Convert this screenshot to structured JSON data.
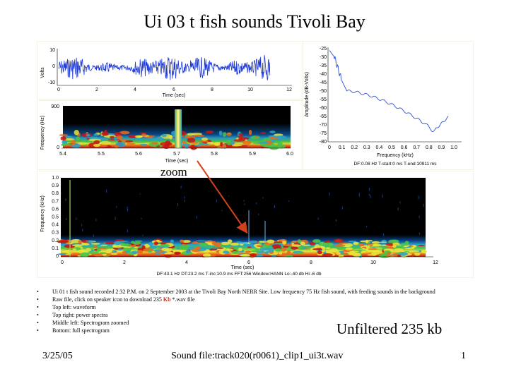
{
  "slide": {
    "title": "Ui 03 t fish sounds Tivoli Bay",
    "zoom_label": "zoom",
    "unfiltered": "Unfiltered 235 kb",
    "date": "3/25/05",
    "footer": "Sound file:track020(r0061)_clip1_ui3t.wav",
    "page_number": "1"
  },
  "notes": [
    {
      "bullet": "•",
      "text": "Ui 01 t fish sound recorded  2:32 P.M. on 2 September 2003 at the Tivoli Bay North NERR Site. Low frequency 75 Hz fish sound, with feeding sounds in the background"
    },
    {
      "bullet": "•",
      "text_pre": "Raw file, click on speaker icon to download 235 ",
      "text_kb": "Kb",
      "text_post": " *.wav file"
    },
    {
      "bullet": "•",
      "text": "Top left: waveform"
    },
    {
      "bullet": "•",
      "text": "Top right: power spectra"
    },
    {
      "bullet": "•",
      "text": "Middle left: Spectrogram zoomed"
    },
    {
      "bullet": "•",
      "text": "Bottom: full spectrogram"
    }
  ],
  "waveform": {
    "ylabel": "Volts",
    "xlabel": "Time (sec)",
    "y_ticks": [
      "10",
      "0",
      "-10"
    ],
    "x_ticks": [
      "0",
      "2",
      "4",
      "6",
      "8",
      "10",
      "12"
    ],
    "color": "#1f3bd6"
  },
  "zoom_spec": {
    "ylabel": "Frequency (Hz)",
    "xlabel": "Time (sec)",
    "y_ticks": [
      "900",
      "0"
    ],
    "x_ticks": [
      "5.4",
      "5.5",
      "5.6",
      "5.7",
      "5.8",
      "5.9",
      "6.0"
    ]
  },
  "power": {
    "ylabel": "Amplitude (dB-Volts)",
    "xlabel": "Frequency (kHz)",
    "y_ticks": [
      "-25",
      "-30",
      "-35",
      "-40",
      "-45",
      "-50",
      "-55",
      "-60",
      "-65",
      "-70",
      "-75",
      "-80"
    ],
    "x_ticks": [
      "0",
      "0.1",
      "0.2",
      "0.3",
      "0.4",
      "0.5",
      "0.6",
      "0.7",
      "0.8",
      "0.9",
      "1.0"
    ],
    "info": "DF:0.08 Hz    T-start:0 ms    T-end:10911 ms",
    "color": "#2b4fd8"
  },
  "full_spec": {
    "ylabel": "Frequency (kHz)",
    "xlabel": "Time (sec)",
    "y_ticks": [
      "1.0",
      "0.9",
      "0.8",
      "0.7",
      "0.6",
      "0.5",
      "0.4",
      "0.3",
      "0.2",
      "0.1",
      "0"
    ],
    "x_ticks": [
      "0",
      "2",
      "4",
      "6",
      "8",
      "10",
      "12"
    ],
    "info": "DF:43.1 Hz    DT:23.2 ms    T-inc:10.9 ms    FFT:256    Window:HANN    Lo:-40 db    Hi:-6 db"
  }
}
